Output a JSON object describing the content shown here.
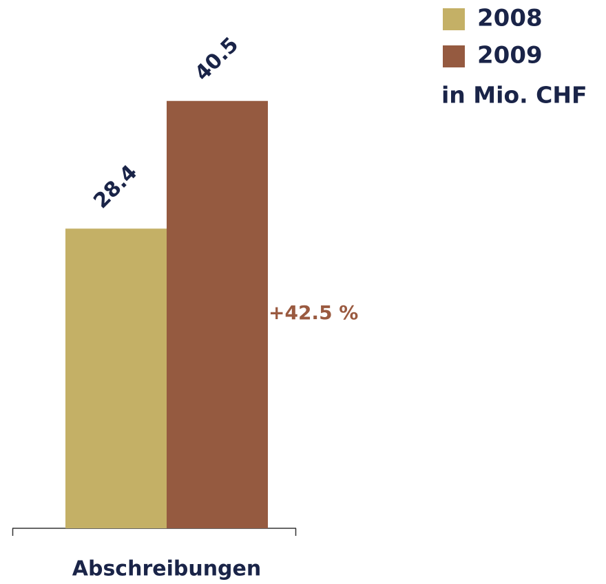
{
  "chart_data": {
    "type": "bar",
    "categories": [
      "Abschreibungen"
    ],
    "series": [
      {
        "name": "2008",
        "color": "#c4b066",
        "values": [
          28.4
        ]
      },
      {
        "name": "2009",
        "color": "#955a40",
        "values": [
          40.5
        ]
      }
    ],
    "ylim": [
      0,
      50
    ],
    "unit_label": "in Mio. CHF",
    "annotation": "+42.5 %",
    "annotation_color": "#9a5a40",
    "label_color": "#1a2448"
  }
}
